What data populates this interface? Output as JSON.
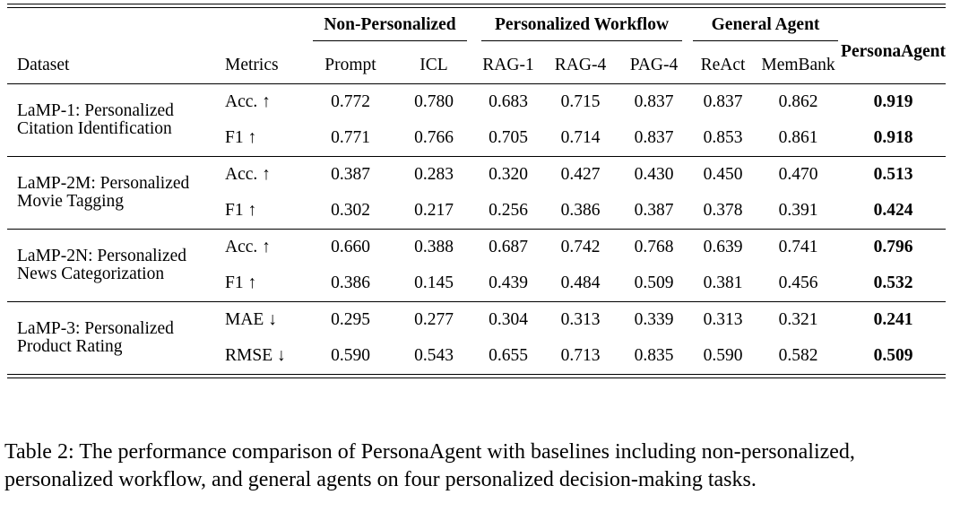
{
  "table": {
    "group_headers": {
      "non_personalized": "Non-Personalized",
      "personalized_workflow": "Personalized Workflow",
      "general_agent": "General Agent",
      "persona_agent": "PersonaAgent"
    },
    "column_headers": {
      "dataset": "Dataset",
      "metrics": "Metrics",
      "prompt": "Prompt",
      "icl": "ICL",
      "rag1": "RAG-1",
      "rag4": "RAG-4",
      "pag4": "PAG-4",
      "react": "ReAct",
      "membank": "MemBank"
    },
    "sections": [
      {
        "dataset": "LaMP-1: Personalized Citation Identification",
        "rows": [
          {
            "metric": "Acc. ↑",
            "values": [
              "0.772",
              "0.780",
              "0.683",
              "0.715",
              "0.837",
              "0.837",
              "0.862",
              "0.919"
            ]
          },
          {
            "metric": "F1 ↑",
            "values": [
              "0.771",
              "0.766",
              "0.705",
              "0.714",
              "0.837",
              "0.853",
              "0.861",
              "0.918"
            ]
          }
        ]
      },
      {
        "dataset": "LaMP-2M: Personalized Movie Tagging",
        "rows": [
          {
            "metric": "Acc. ↑",
            "values": [
              "0.387",
              "0.283",
              "0.320",
              "0.427",
              "0.430",
              "0.450",
              "0.470",
              "0.513"
            ]
          },
          {
            "metric": "F1 ↑",
            "values": [
              "0.302",
              "0.217",
              "0.256",
              "0.386",
              "0.387",
              "0.378",
              "0.391",
              "0.424"
            ]
          }
        ]
      },
      {
        "dataset": "LaMP-2N: Personalized News Categorization",
        "rows": [
          {
            "metric": "Acc. ↑",
            "values": [
              "0.660",
              "0.388",
              "0.687",
              "0.742",
              "0.768",
              "0.639",
              "0.741",
              "0.796"
            ]
          },
          {
            "metric": "F1 ↑",
            "values": [
              "0.386",
              "0.145",
              "0.439",
              "0.484",
              "0.509",
              "0.381",
              "0.456",
              "0.532"
            ]
          }
        ]
      },
      {
        "dataset": "LaMP-3: Personalized Product Rating",
        "rows": [
          {
            "metric": "MAE ↓",
            "values": [
              "0.295",
              "0.277",
              "0.304",
              "0.313",
              "0.339",
              "0.313",
              "0.321",
              "0.241"
            ]
          },
          {
            "metric": "RMSE ↓",
            "values": [
              "0.590",
              "0.543",
              "0.655",
              "0.713",
              "0.835",
              "0.590",
              "0.582",
              "0.509"
            ]
          }
        ]
      }
    ]
  },
  "caption": "Table 2: The performance comparison of PersonaAgent with baselines including non-personalized, personalized workflow, and general agents on four personalized decision-making tasks."
}
